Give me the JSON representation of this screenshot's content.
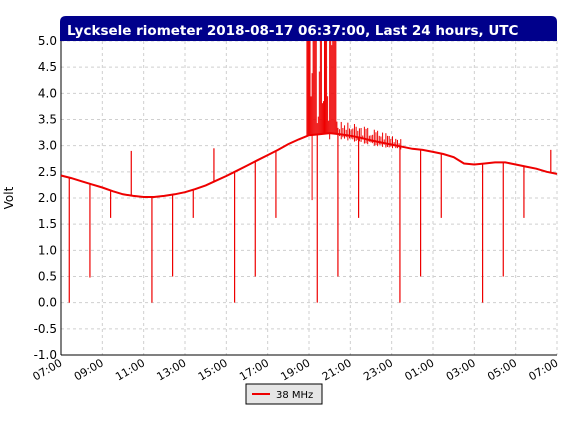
{
  "chart_data": {
    "type": "line",
    "title": "Lycksele riometer 2018-08-17 06:37:00, Last 24 hours, UTC",
    "ylabel": "Volt",
    "xlabel": "",
    "ylim": [
      -1.0,
      5.0
    ],
    "yticks": [
      "5.0",
      "4.5",
      "4.0",
      "3.5",
      "3.0",
      "2.5",
      "2.0",
      "1.5",
      "1.0",
      "0.5",
      "0.0",
      "-0.5",
      "-1.0"
    ],
    "xticks": [
      "07:00",
      "09:00",
      "11:00",
      "13:00",
      "15:00",
      "17:00",
      "19:00",
      "21:00",
      "23:00",
      "01:00",
      "03:00",
      "05:00",
      "07:00"
    ],
    "grid": true,
    "legend_position": "bottom-center",
    "series_color": "#ee0000",
    "series": [
      {
        "name": "38 MHz",
        "x_hours": [
          0,
          0.5,
          1,
          1.5,
          2,
          2.5,
          3,
          3.5,
          4,
          4.5,
          5,
          5.5,
          6,
          6.5,
          7,
          7.5,
          8,
          8.5,
          9,
          9.5,
          10,
          10.5,
          11,
          11.5,
          12,
          12.5,
          13,
          13.5,
          14,
          14.5,
          15,
          15.5,
          16,
          16.5,
          17,
          17.5,
          18,
          18.5,
          19,
          19.5,
          20,
          20.5,
          21,
          21.5,
          22,
          22.5,
          23,
          23.5,
          24
        ],
        "values": [
          2.43,
          2.38,
          2.32,
          2.26,
          2.2,
          2.13,
          2.07,
          2.04,
          2.02,
          2.02,
          2.04,
          2.07,
          2.11,
          2.17,
          2.24,
          2.33,
          2.42,
          2.52,
          2.62,
          2.72,
          2.82,
          2.92,
          3.03,
          3.12,
          3.2,
          3.22,
          3.24,
          3.22,
          3.19,
          3.15,
          3.1,
          3.06,
          3.02,
          2.98,
          2.94,
          2.92,
          2.88,
          2.84,
          2.78,
          2.66,
          2.64,
          2.66,
          2.68,
          2.68,
          2.64,
          2.6,
          2.56,
          2.5,
          2.46
        ],
        "spikes": [
          {
            "x": 0.4,
            "y": 0.0
          },
          {
            "x": 1.4,
            "y": 0.48
          },
          {
            "x": 2.4,
            "y": 1.62
          },
          {
            "x": 3.4,
            "y": 2.9
          },
          {
            "x": 4.4,
            "y": 0.0
          },
          {
            "x": 5.4,
            "y": 0.5
          },
          {
            "x": 6.4,
            "y": 1.62
          },
          {
            "x": 7.4,
            "y": 2.95
          },
          {
            "x": 8.4,
            "y": 0.0
          },
          {
            "x": 9.4,
            "y": 0.5
          },
          {
            "x": 10.4,
            "y": 1.62
          },
          {
            "x": 12.4,
            "y": 0.0
          },
          {
            "x": 13.4,
            "y": 0.5
          },
          {
            "x": 14.4,
            "y": 1.62
          },
          {
            "x": 16.4,
            "y": 0.0
          },
          {
            "x": 17.4,
            "y": 0.5
          },
          {
            "x": 18.4,
            "y": 1.62
          },
          {
            "x": 20.4,
            "y": 0.0
          },
          {
            "x": 21.4,
            "y": 0.5
          },
          {
            "x": 22.4,
            "y": 1.62
          },
          {
            "x": 23.7,
            "y": 2.92
          }
        ],
        "burst": {
          "x_start": 11.9,
          "x_end": 13.4,
          "y_max": 5.0
        }
      }
    ]
  }
}
